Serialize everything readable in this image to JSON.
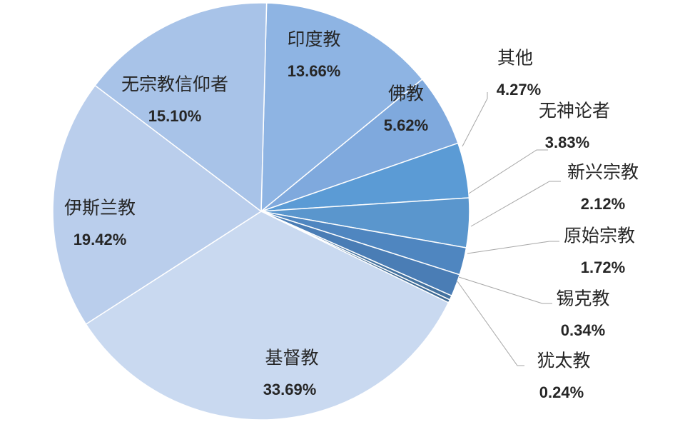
{
  "chart_data": {
    "type": "pie",
    "title": "",
    "start_angle_deg": 1.5,
    "direction": "clockwise",
    "slices": [
      {
        "label": "印度教",
        "value": 13.66,
        "pct_label": "13.66%",
        "color": "#8EB4E3",
        "label_mode": "inside"
      },
      {
        "label": "佛教",
        "value": 5.62,
        "pct_label": "5.62%",
        "color": "#7FA9DD",
        "label_mode": "inside"
      },
      {
        "label": "其他",
        "value": 4.27,
        "pct_label": "4.27%",
        "color": "#5B9BD5",
        "label_mode": "outside"
      },
      {
        "label": "无神论者",
        "value": 3.83,
        "pct_label": "3.83%",
        "color": "#5A96CD",
        "label_mode": "outside"
      },
      {
        "label": "新兴宗教",
        "value": 2.12,
        "pct_label": "2.12%",
        "color": "#4F86C0",
        "label_mode": "outside"
      },
      {
        "label": "原始宗教",
        "value": 1.72,
        "pct_label": "1.72%",
        "color": "#4A7DB5",
        "label_mode": "outside"
      },
      {
        "label": "锡克教",
        "value": 0.34,
        "pct_label": "0.34%",
        "color": "#44729F",
        "label_mode": "outside"
      },
      {
        "label": "犹太教",
        "value": 0.24,
        "pct_label": "0.24%",
        "color": "#3E6A94",
        "label_mode": "outside"
      },
      {
        "label": "基督教",
        "value": 33.69,
        "pct_label": "33.69%",
        "color": "#C9D9F0",
        "label_mode": "inside"
      },
      {
        "label": "伊斯兰教",
        "value": 19.42,
        "pct_label": "19.42%",
        "color": "#BACEEC",
        "label_mode": "inside"
      },
      {
        "label": "无宗教信仰者",
        "value": 15.1,
        "pct_label": "15.10%",
        "color": "#A8C3E8",
        "label_mode": "inside"
      }
    ]
  }
}
